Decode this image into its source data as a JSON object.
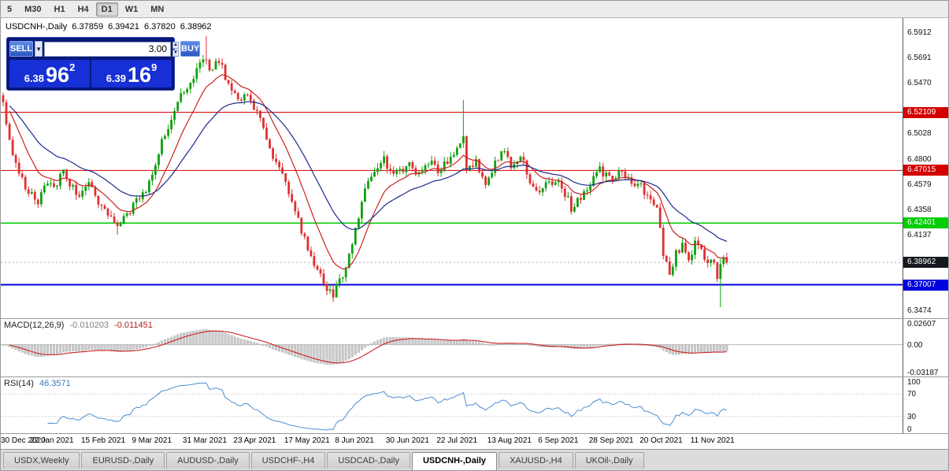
{
  "toolbar": {
    "timeframes": [
      {
        "label": "5",
        "active": false
      },
      {
        "label": "M30",
        "active": false
      },
      {
        "label": "H1",
        "active": false
      },
      {
        "label": "H4",
        "active": false
      },
      {
        "label": "D1",
        "active": true
      },
      {
        "label": "W1",
        "active": false
      },
      {
        "label": "MN",
        "active": false
      }
    ]
  },
  "symbol_header": {
    "symbol": "USDCNH-,Daily",
    "open": "6.37859",
    "high": "6.39421",
    "low": "6.37820",
    "close": "6.38962"
  },
  "trade_panel": {
    "sell_label": "SELL",
    "buy_label": "BUY",
    "lot": "3.00",
    "sell_price": {
      "prefix": "6.38",
      "big": "96",
      "sup": "2"
    },
    "buy_price": {
      "prefix": "6.39",
      "big": "16",
      "sup": "9"
    }
  },
  "price_axis": {
    "ticks": [
      {
        "label": "6.5912",
        "price": 6.5912
      },
      {
        "label": "6.5691",
        "price": 6.5691
      },
      {
        "label": "6.5470",
        "price": 6.547
      },
      {
        "label": "6.5028",
        "price": 6.5028
      },
      {
        "label": "6.4800",
        "price": 6.48
      },
      {
        "label": "6.4579",
        "price": 6.4579
      },
      {
        "label": "6.4358",
        "price": 6.4358
      },
      {
        "label": "6.4137",
        "price": 6.4137
      },
      {
        "label": "6.3474",
        "price": 6.3474
      }
    ],
    "tags": [
      {
        "label": "6.52109",
        "price": 6.52109,
        "color": "#d40000",
        "name": "hline-tag-6.52109",
        "line": true
      },
      {
        "label": "6.47015",
        "price": 6.47015,
        "color": "#d40000",
        "name": "hline-tag-6.47015",
        "line": true
      },
      {
        "label": "6.42401",
        "price": 6.42401,
        "color": "#00cc00",
        "name": "hline-tag-6.42401",
        "line": true
      },
      {
        "label": "6.38962",
        "price": 6.38962,
        "color": "#15181e",
        "name": "current-price-tag",
        "line": false
      },
      {
        "label": "6.37007",
        "price": 6.37007,
        "color": "#0000e0",
        "name": "hline-tag-6.37007",
        "line": true
      }
    ]
  },
  "macd_panel": {
    "title": "MACD(12,26,9)",
    "main_value": "-0.010203",
    "signal_value": "-0.011451",
    "ticks": [
      "0.02607",
      "0.00",
      "-0.03187"
    ]
  },
  "rsi_panel": {
    "title": "RSI(14)",
    "value": "46.3571",
    "ticks": [
      100,
      70,
      30,
      0
    ]
  },
  "date_axis": {
    "labels": [
      "30 Dec 2020",
      "22 Jan 2021",
      "15 Feb 2021",
      "9 Mar 2021",
      "31 Mar 2021",
      "23 Apr 2021",
      "17 May 2021",
      "8 Jun 2021",
      "30 Jun 2021",
      "22 Jul 2021",
      "13 Aug 2021",
      "6 Sep 2021",
      "28 Sep 2021",
      "20 Oct 2021",
      "11 Nov 2021"
    ],
    "candles_per_label": 16
  },
  "tabs": [
    {
      "label": "USDX,Weekly",
      "active": false
    },
    {
      "label": "EURUSD-,Daily",
      "active": false
    },
    {
      "label": "AUDUSD-,Daily",
      "active": false
    },
    {
      "label": "USDCHF-,H4",
      "active": false
    },
    {
      "label": "USDCAD-,Daily",
      "active": false
    },
    {
      "label": "USDCNH-,Daily",
      "active": true
    },
    {
      "label": "XAUUSD-,H4",
      "active": false
    },
    {
      "label": "UKOil-,Daily",
      "active": false
    }
  ],
  "colors": {
    "candle_up": "#10a010",
    "candle_down": "#df3030",
    "ma_fast": "#cc2222",
    "ma_slow": "#1c2a8c",
    "macd_hist": "#c9c9c9",
    "macd_hist_border": "#adadad",
    "macd_signal": "#cc2222",
    "rsi_line": "#4c8fd2",
    "level_dotted": "#b8b8b8"
  },
  "chart_data": {
    "type": "candlestick",
    "symbol": "USDCNH-",
    "timeframe": "Daily",
    "title": "USDCNH-,Daily",
    "ohlc_current": {
      "open": 6.37859,
      "high": 6.39421,
      "low": 6.3782,
      "close": 6.38962
    },
    "y_range": [
      6.3408,
      6.6035
    ],
    "candle_count": 229,
    "price_anchors": [
      [
        0,
        6.528
      ],
      [
        2,
        6.497
      ],
      [
        5,
        6.468
      ],
      [
        8,
        6.452
      ],
      [
        11,
        6.44
      ],
      [
        14,
        6.462
      ],
      [
        16,
        6.452
      ],
      [
        19,
        6.47
      ],
      [
        23,
        6.448
      ],
      [
        27,
        6.461
      ],
      [
        30,
        6.442
      ],
      [
        33,
        6.43
      ],
      [
        36,
        6.42
      ],
      [
        39,
        6.43
      ],
      [
        42,
        6.445
      ],
      [
        45,
        6.455
      ],
      [
        48,
        6.477
      ],
      [
        51,
        6.503
      ],
      [
        54,
        6.52
      ],
      [
        57,
        6.541
      ],
      [
        60,
        6.552
      ],
      [
        63,
        6.571
      ],
      [
        65,
        6.556
      ],
      [
        68,
        6.566
      ],
      [
        71,
        6.546
      ],
      [
        74,
        6.53
      ],
      [
        77,
        6.537
      ],
      [
        80,
        6.519
      ],
      [
        83,
        6.499
      ],
      [
        86,
        6.477
      ],
      [
        89,
        6.46
      ],
      [
        92,
        6.437
      ],
      [
        95,
        6.409
      ],
      [
        98,
        6.387
      ],
      [
        101,
        6.371
      ],
      [
        104,
        6.362
      ],
      [
        107,
        6.377
      ],
      [
        110,
        6.404
      ],
      [
        112,
        6.431
      ],
      [
        114,
        6.451
      ],
      [
        117,
        6.469
      ],
      [
        120,
        6.481
      ],
      [
        123,
        6.464
      ],
      [
        126,
        6.472
      ],
      [
        128,
        6.478
      ],
      [
        131,
        6.465
      ],
      [
        134,
        6.477
      ],
      [
        137,
        6.471
      ],
      [
        140,
        6.477
      ],
      [
        143,
        6.489
      ],
      [
        145,
        6.499
      ],
      [
        146,
        6.468
      ],
      [
        149,
        6.477
      ],
      [
        152,
        6.459
      ],
      [
        155,
        6.477
      ],
      [
        158,
        6.487
      ],
      [
        160,
        6.476
      ],
      [
        163,
        6.484
      ],
      [
        166,
        6.462
      ],
      [
        169,
        6.451
      ],
      [
        172,
        6.461
      ],
      [
        176,
        6.457
      ],
      [
        179,
        6.437
      ],
      [
        182,
        6.447
      ],
      [
        185,
        6.459
      ],
      [
        188,
        6.471
      ],
      [
        192,
        6.461
      ],
      [
        195,
        6.469
      ],
      [
        198,
        6.461
      ],
      [
        201,
        6.455
      ],
      [
        204,
        6.447
      ],
      [
        206,
        6.441
      ],
      [
        208,
        6.399
      ],
      [
        210,
        6.382
      ],
      [
        212,
        6.397
      ],
      [
        214,
        6.407
      ],
      [
        216,
        6.393
      ],
      [
        218,
        6.407
      ],
      [
        220,
        6.399
      ],
      [
        222,
        6.391
      ],
      [
        224,
        6.386
      ],
      [
        225,
        6.373
      ],
      [
        226,
        6.387
      ],
      [
        227,
        6.393
      ],
      [
        228,
        6.3896
      ]
    ],
    "wick_extremes": [
      {
        "i": 36,
        "low": 6.414
      },
      {
        "i": 64,
        "high": 6.588
      },
      {
        "i": 104,
        "low": 6.3565
      },
      {
        "i": 145,
        "high": 6.532
      },
      {
        "i": 226,
        "low": 6.3505
      }
    ],
    "h_lines": [
      {
        "price": 6.52109,
        "color": "#d40000",
        "width": 1
      },
      {
        "price": 6.47015,
        "color": "#d40000",
        "width": 1
      },
      {
        "price": 6.42401,
        "color": "#00cc00",
        "width": 1.5
      },
      {
        "price": 6.37007,
        "color": "#0000e0",
        "width": 2
      }
    ],
    "current_price": 6.38962,
    "indicators": [
      {
        "name": "MACD",
        "params": "12,26,9",
        "main": -0.010203,
        "signal": -0.011451,
        "axis": [
          0.02607,
          0.0,
          -0.03187
        ]
      },
      {
        "name": "RSI",
        "params": "14",
        "value": 46.3571,
        "levels": [
          70,
          30
        ],
        "axis": [
          100,
          70,
          30,
          0
        ]
      }
    ]
  }
}
